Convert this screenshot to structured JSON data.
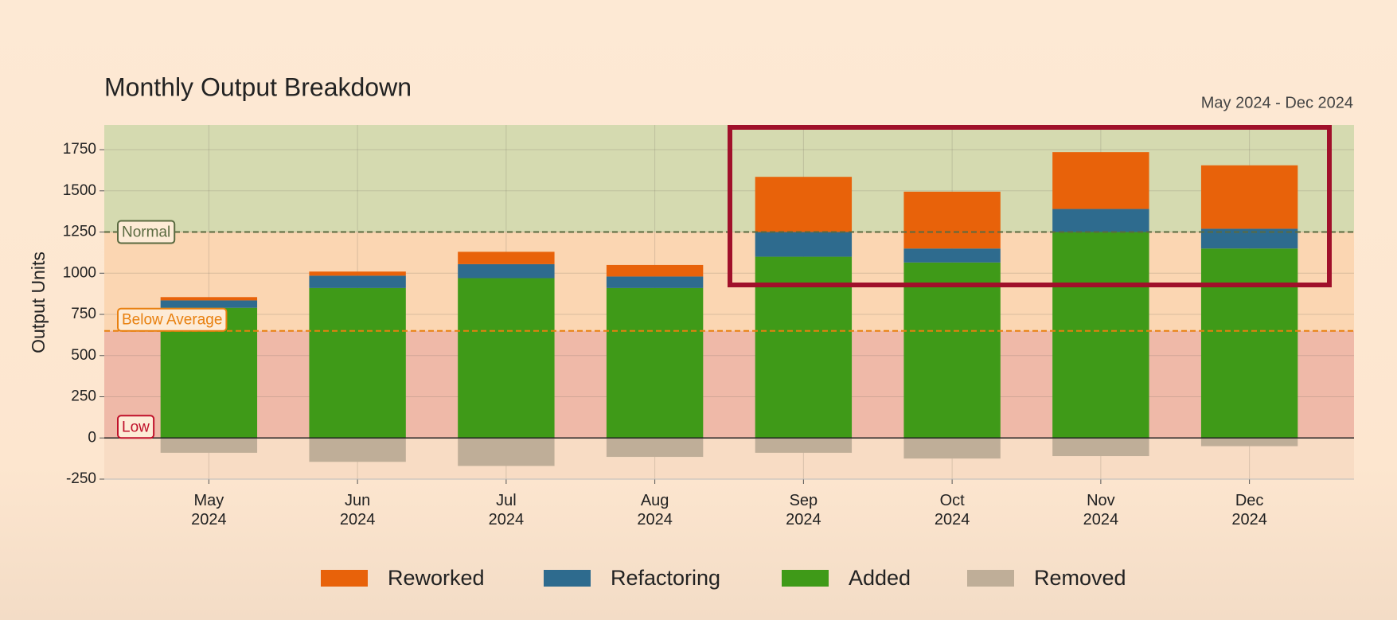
{
  "chart_data": {
    "type": "stacked_bar",
    "title": "Monthly Output Breakdown",
    "subtitle": "May 2024 - Dec 2024",
    "y_label": "Output Units",
    "categories": [
      "May 2024",
      "Jun 2024",
      "Jul 2024",
      "Aug 2024",
      "Sep 2024",
      "Oct 2024",
      "Nov 2024",
      "Dec 2024"
    ],
    "series": [
      {
        "name": "Reworked",
        "color": "#e8620a",
        "values": [
          20,
          25,
          75,
          70,
          335,
          345,
          345,
          385
        ]
      },
      {
        "name": "Refactoring",
        "color": "#2e6b8e",
        "values": [
          45,
          75,
          85,
          70,
          150,
          85,
          140,
          120
        ]
      },
      {
        "name": "Added",
        "color": "#3f9a18",
        "values": [
          790,
          910,
          970,
          910,
          1100,
          1065,
          1250,
          1150
        ]
      },
      {
        "name": "Removed",
        "color": "#bfae98",
        "values": [
          -90,
          -145,
          -170,
          -115,
          -90,
          -125,
          -110,
          -50
        ]
      }
    ],
    "zones": [
      {
        "name": "Normal",
        "from": 1250,
        "color": "#d5dab0",
        "line_color": "#5a6a40"
      },
      {
        "name": "Below Average",
        "from": 650,
        "to": 1250,
        "color": "#fbd6b2",
        "line_color": "#e8800f"
      },
      {
        "name": "Low",
        "from": 0,
        "to": 650,
        "color": "#efb9a8",
        "line_color": "#c0102a"
      }
    ],
    "ylim": [
      -250,
      1900
    ],
    "yticks": [
      -250,
      0,
      250,
      500,
      750,
      1000,
      1250,
      1500,
      1750
    ],
    "grid": true,
    "legend": "bottom"
  }
}
